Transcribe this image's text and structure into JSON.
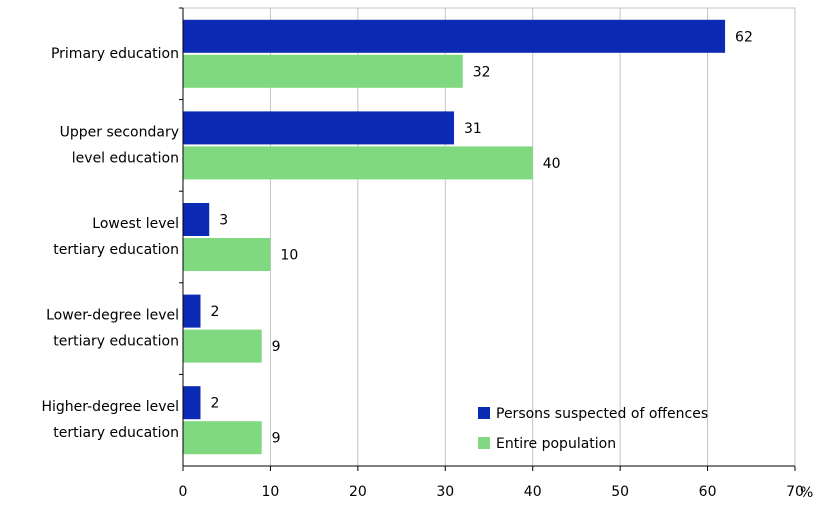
{
  "chart_data": {
    "type": "bar",
    "orientation": "horizontal",
    "categories": [
      "Primary education",
      "Upper secondary\nlevel education",
      "Lowest level\ntertiary education",
      "Lower-degree level\ntertiary education",
      "Higher-degree level\ntertiary education"
    ],
    "series": [
      {
        "name": "Persons suspected of offences",
        "color": "#0b2bb5",
        "values": [
          62,
          31,
          3,
          2,
          2
        ]
      },
      {
        "name": "Entire population",
        "color": "#80d880",
        "values": [
          32,
          40,
          10,
          9,
          9
        ]
      }
    ],
    "xlim": [
      0,
      70
    ],
    "xticks": [
      0,
      10,
      20,
      30,
      40,
      50,
      60,
      70
    ],
    "x_label": "%",
    "grid": true,
    "legend": "lower right"
  }
}
